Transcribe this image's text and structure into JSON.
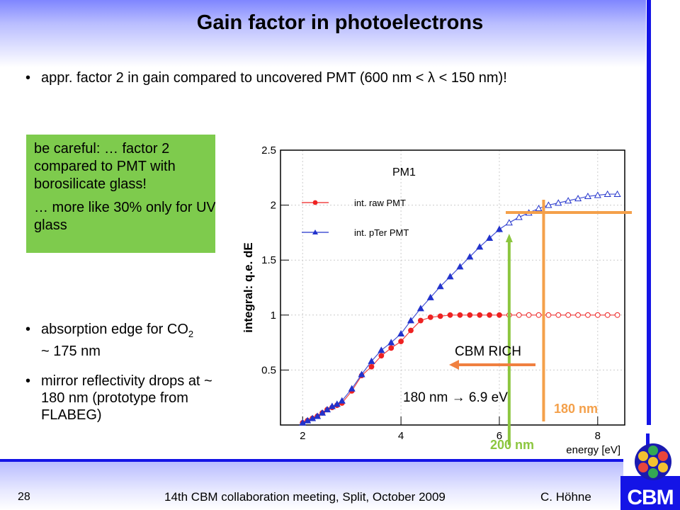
{
  "slide": {
    "title": "Gain factor in photoelectrons",
    "bullet_top": {
      "bullet": "•",
      "text": "appr. factor 2 in gain compared to uncovered PMT (600 nm < λ < 150 nm)!"
    },
    "note_box": {
      "line1": "be careful: … factor 2 compared to PMT with borosilicate glass!",
      "line2": "… more like 30% only for UV glass"
    },
    "bullets_left": [
      {
        "bullet": "•",
        "text": "absorption edge for CO",
        "sub": "2",
        "text2": " ~ 175 nm"
      },
      {
        "bullet": "•",
        "text": "mirror reflectivity drops at ~ 180 nm (prototype from FLABEG)"
      }
    ],
    "footer": {
      "page": "28",
      "meeting": "14th CBM collaboration meeting, Split, October 2009",
      "author": "C. Höhne"
    },
    "logo_text": "CBM",
    "colors": {
      "accent_blue": "#1414e6",
      "note_green": "#7ecb4d",
      "orange": "#f4a04a",
      "green": "#8cc63f",
      "red_series": "#ee2222",
      "blue_series": "#2233cc"
    }
  },
  "chart_data": {
    "type": "line",
    "title": "PM1",
    "xlabel": "energy [eV]",
    "ylabel": "integral: q.e. dE",
    "xlim": [
      1.55,
      8.55
    ],
    "ylim": [
      0,
      2.5
    ],
    "xticks": [
      "2",
      "4",
      "6",
      "8"
    ],
    "xtick_values": [
      2,
      4,
      6,
      8
    ],
    "yticks": [
      "0.5",
      "1",
      "1.5",
      "2",
      "2.5"
    ],
    "ytick_values": [
      0.5,
      1,
      1.5,
      2,
      2.5
    ],
    "grid": true,
    "series": [
      {
        "name": "int. raw PMT",
        "color": "#ee2222",
        "x": [
          2.0,
          2.1,
          2.2,
          2.3,
          2.4,
          2.5,
          2.6,
          2.7,
          2.8,
          3.0,
          3.2,
          3.4,
          3.6,
          3.8,
          4.0,
          4.2,
          4.4,
          4.6,
          4.8,
          5.0,
          5.2,
          5.4,
          5.6,
          5.8,
          6.0,
          6.2,
          6.4,
          6.6,
          6.8,
          7.0,
          7.2,
          7.4,
          7.6,
          7.8,
          8.0,
          8.2,
          8.4
        ],
        "y": [
          0.02,
          0.04,
          0.06,
          0.08,
          0.11,
          0.14,
          0.16,
          0.18,
          0.2,
          0.31,
          0.45,
          0.53,
          0.63,
          0.7,
          0.76,
          0.86,
          0.95,
          0.98,
          0.99,
          1.0,
          1.0,
          1.0,
          1.0,
          1.0,
          1.0,
          1.0,
          1.0,
          1.0,
          1.0,
          1.0,
          1.0,
          1.0,
          1.0,
          1.0,
          1.0,
          1.0,
          1.0
        ]
      },
      {
        "name": "int. pTer PMT",
        "color": "#2233cc",
        "x": [
          2.0,
          2.1,
          2.2,
          2.3,
          2.4,
          2.5,
          2.6,
          2.7,
          2.8,
          3.0,
          3.2,
          3.4,
          3.6,
          3.8,
          4.0,
          4.2,
          4.4,
          4.6,
          4.8,
          5.0,
          5.2,
          5.4,
          5.6,
          5.8,
          6.0,
          6.2,
          6.4,
          6.6,
          6.8,
          7.0,
          7.2,
          7.4,
          7.6,
          7.8,
          8.0,
          8.2,
          8.4
        ],
        "y": [
          0.02,
          0.04,
          0.06,
          0.08,
          0.11,
          0.14,
          0.17,
          0.19,
          0.22,
          0.33,
          0.46,
          0.58,
          0.68,
          0.75,
          0.83,
          0.95,
          1.06,
          1.16,
          1.26,
          1.35,
          1.44,
          1.53,
          1.62,
          1.7,
          1.78,
          1.84,
          1.89,
          1.93,
          1.97,
          2.0,
          2.02,
          2.04,
          2.06,
          2.08,
          2.09,
          2.1,
          2.1
        ]
      }
    ],
    "annotations": [
      {
        "id": "cbm_rich",
        "text": "CBM RICH",
        "arrow": "left"
      },
      {
        "id": "nm180_ev",
        "text": "180 nm → 6.9 eV"
      },
      {
        "id": "nm180",
        "text": "180 nm",
        "x": 6.9,
        "color": "#f4a04a"
      },
      {
        "id": "nm200",
        "text": "200 nm",
        "x": 6.2,
        "color": "#8cc63f"
      }
    ]
  }
}
